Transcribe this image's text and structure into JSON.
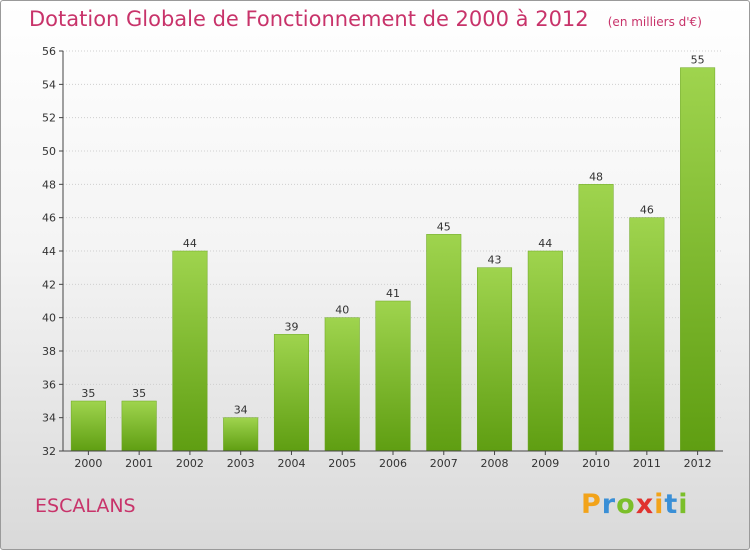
{
  "title": "Dotation Globale de Fonctionnement de 2000 à 2012",
  "subtitle": "(en milliers d'€)",
  "commune": "ESCALANS",
  "logo": {
    "text": "Proxiti",
    "letters": [
      "P",
      "r",
      "o",
      "x",
      "i",
      "t",
      "i"
    ],
    "colors": [
      "#f2a31a",
      "#3a8fd6",
      "#7bbf2a",
      "#e0332f",
      "#f2a31a",
      "#3a8fd6",
      "#7bbf2a"
    ]
  },
  "colors": {
    "bar_top": "#9fd44e",
    "bar_bottom": "#5f9e12",
    "axis": "#444444",
    "grid": "#cfcfcf",
    "title": "#c8336a"
  },
  "chart_data": {
    "type": "bar",
    "categories": [
      "2000",
      "2001",
      "2002",
      "2003",
      "2004",
      "2005",
      "2006",
      "2007",
      "2008",
      "2009",
      "2010",
      "2011",
      "2012"
    ],
    "values": [
      35,
      35,
      44,
      34,
      39,
      40,
      41,
      45,
      43,
      44,
      48,
      46,
      55
    ],
    "title": "Dotation Globale de Fonctionnement de 2000 à 2012",
    "subtitle": "(en milliers d'€)",
    "xlabel": "",
    "ylabel": "",
    "ylim": [
      32,
      56
    ],
    "yticks": [
      32,
      34,
      36,
      38,
      40,
      42,
      44,
      46,
      48,
      50,
      52,
      54,
      56
    ],
    "grid": true,
    "data_labels": true
  }
}
